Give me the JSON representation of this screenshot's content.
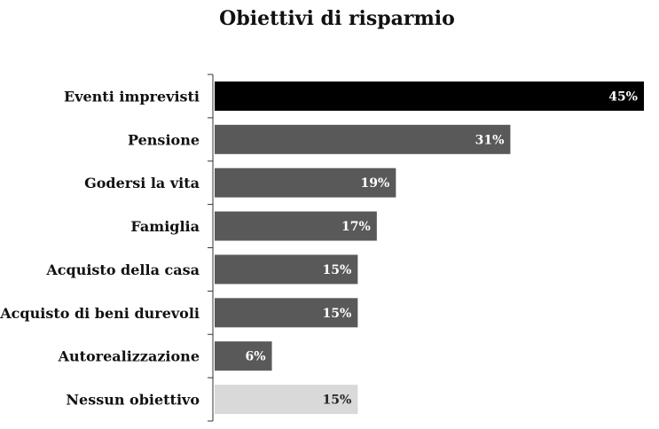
{
  "chart_data": {
    "type": "bar",
    "orientation": "horizontal",
    "title": "Obiettivi di risparmio",
    "xlabel": "",
    "ylabel": "",
    "categories": [
      "Eventi imprevisti",
      "Pensione",
      "Godersi la vita",
      "Famiglia",
      "Acquisto della casa",
      "Acquisto di beni durevoli",
      "Autorealizzazione",
      "Nessun obiettivo"
    ],
    "values": [
      45,
      31,
      19,
      17,
      15,
      15,
      6,
      15
    ],
    "value_labels": [
      "45%",
      "31%",
      "19%",
      "17%",
      "15%",
      "15%",
      "6%",
      "15%"
    ],
    "bar_colors": [
      "#000000",
      "#595959",
      "#595959",
      "#595959",
      "#595959",
      "#595959",
      "#595959",
      "#d9d9d9"
    ],
    "label_colors": [
      "#ffffff",
      "#ffffff",
      "#ffffff",
      "#ffffff",
      "#ffffff",
      "#ffffff",
      "#ffffff",
      "#222222"
    ],
    "xlim": [
      0,
      45
    ],
    "grid": false,
    "legend": "none"
  }
}
